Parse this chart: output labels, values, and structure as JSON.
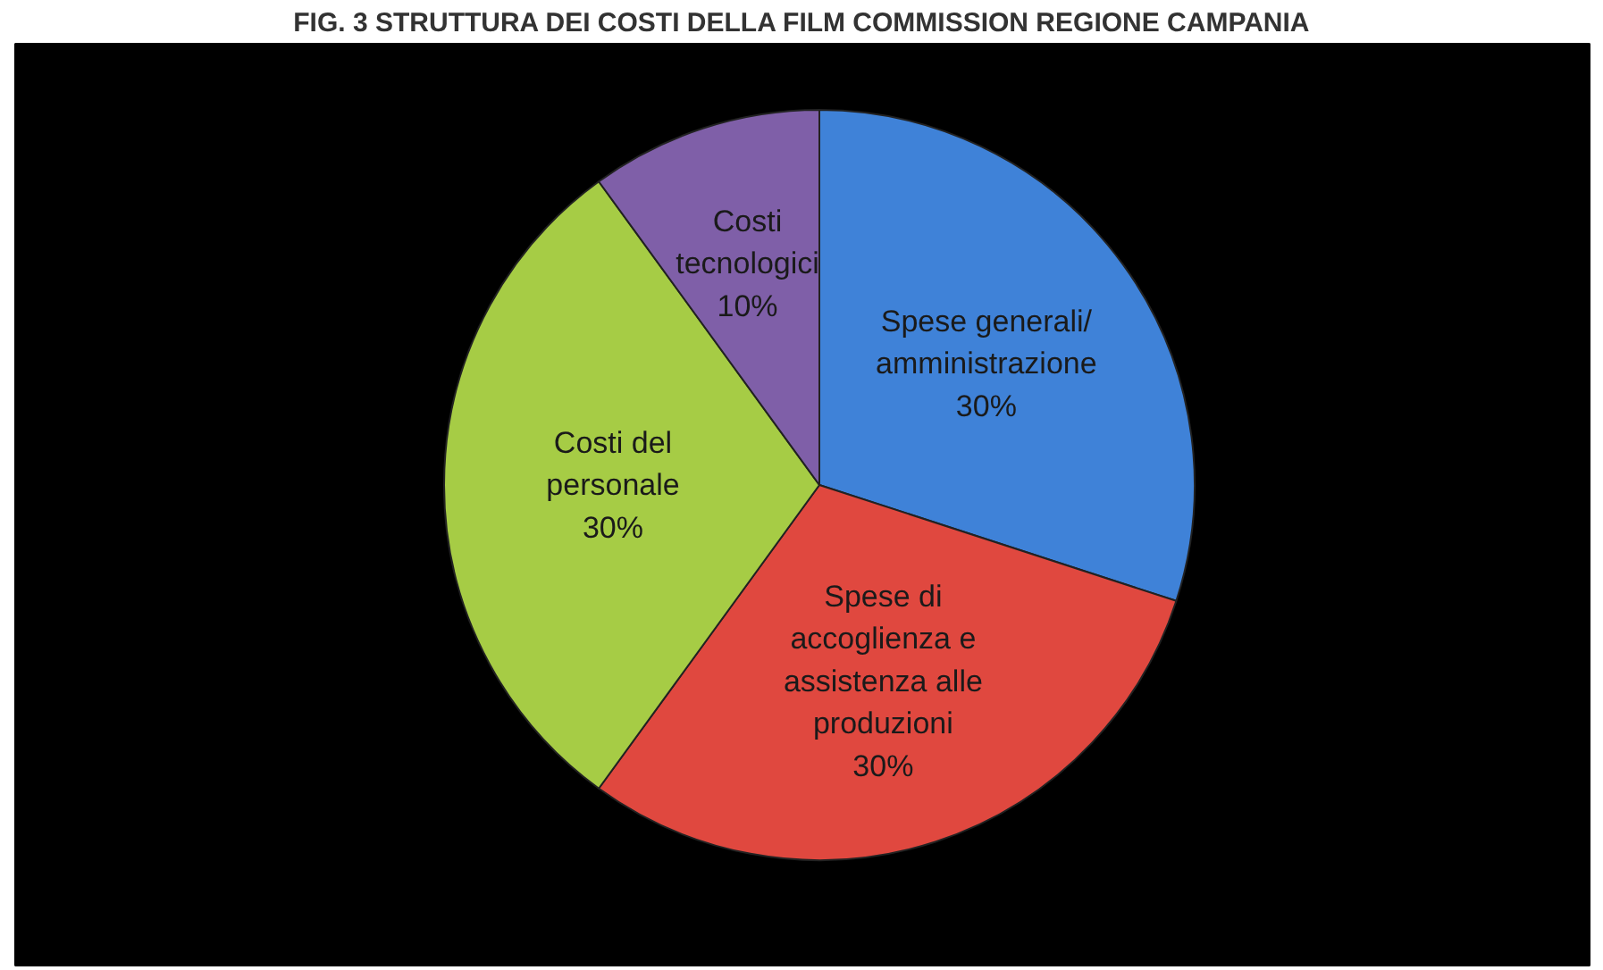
{
  "chart_data": {
    "type": "pie",
    "title": "FIG. 3 STRUTTURA DEI COSTI DELLA FILM COMMISSION REGIONE CAMPANIA",
    "categories": [
      "Spese generali/\namministrazione",
      "Spese di\naccoglienza e\nassistenza alle\nproduzioni",
      "Costi del\npersonale",
      "Costi\ntecnologici"
    ],
    "values": [
      30,
      30,
      30,
      10
    ],
    "colors": [
      "#3f82d8",
      "#e0483f",
      "#a6cc45",
      "#7f5fa8"
    ],
    "value_labels": [
      "30%",
      "30%",
      "30%",
      "10%"
    ]
  }
}
